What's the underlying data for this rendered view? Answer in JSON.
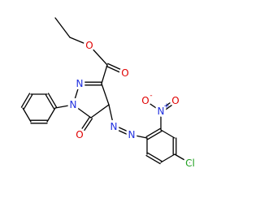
{
  "atoms": [
    {
      "label": "O"
    },
    {
      "label": "O"
    },
    {
      "label": "N"
    },
    {
      "label": "N"
    },
    {
      "label": "O"
    },
    {
      "label": "N"
    },
    {
      "label": "N"
    },
    {
      "label": "N",
      "charge": "+"
    },
    {
      "label": "O",
      "charge": "-"
    },
    {
      "label": "O"
    },
    {
      "label": "Cl"
    }
  ]
}
